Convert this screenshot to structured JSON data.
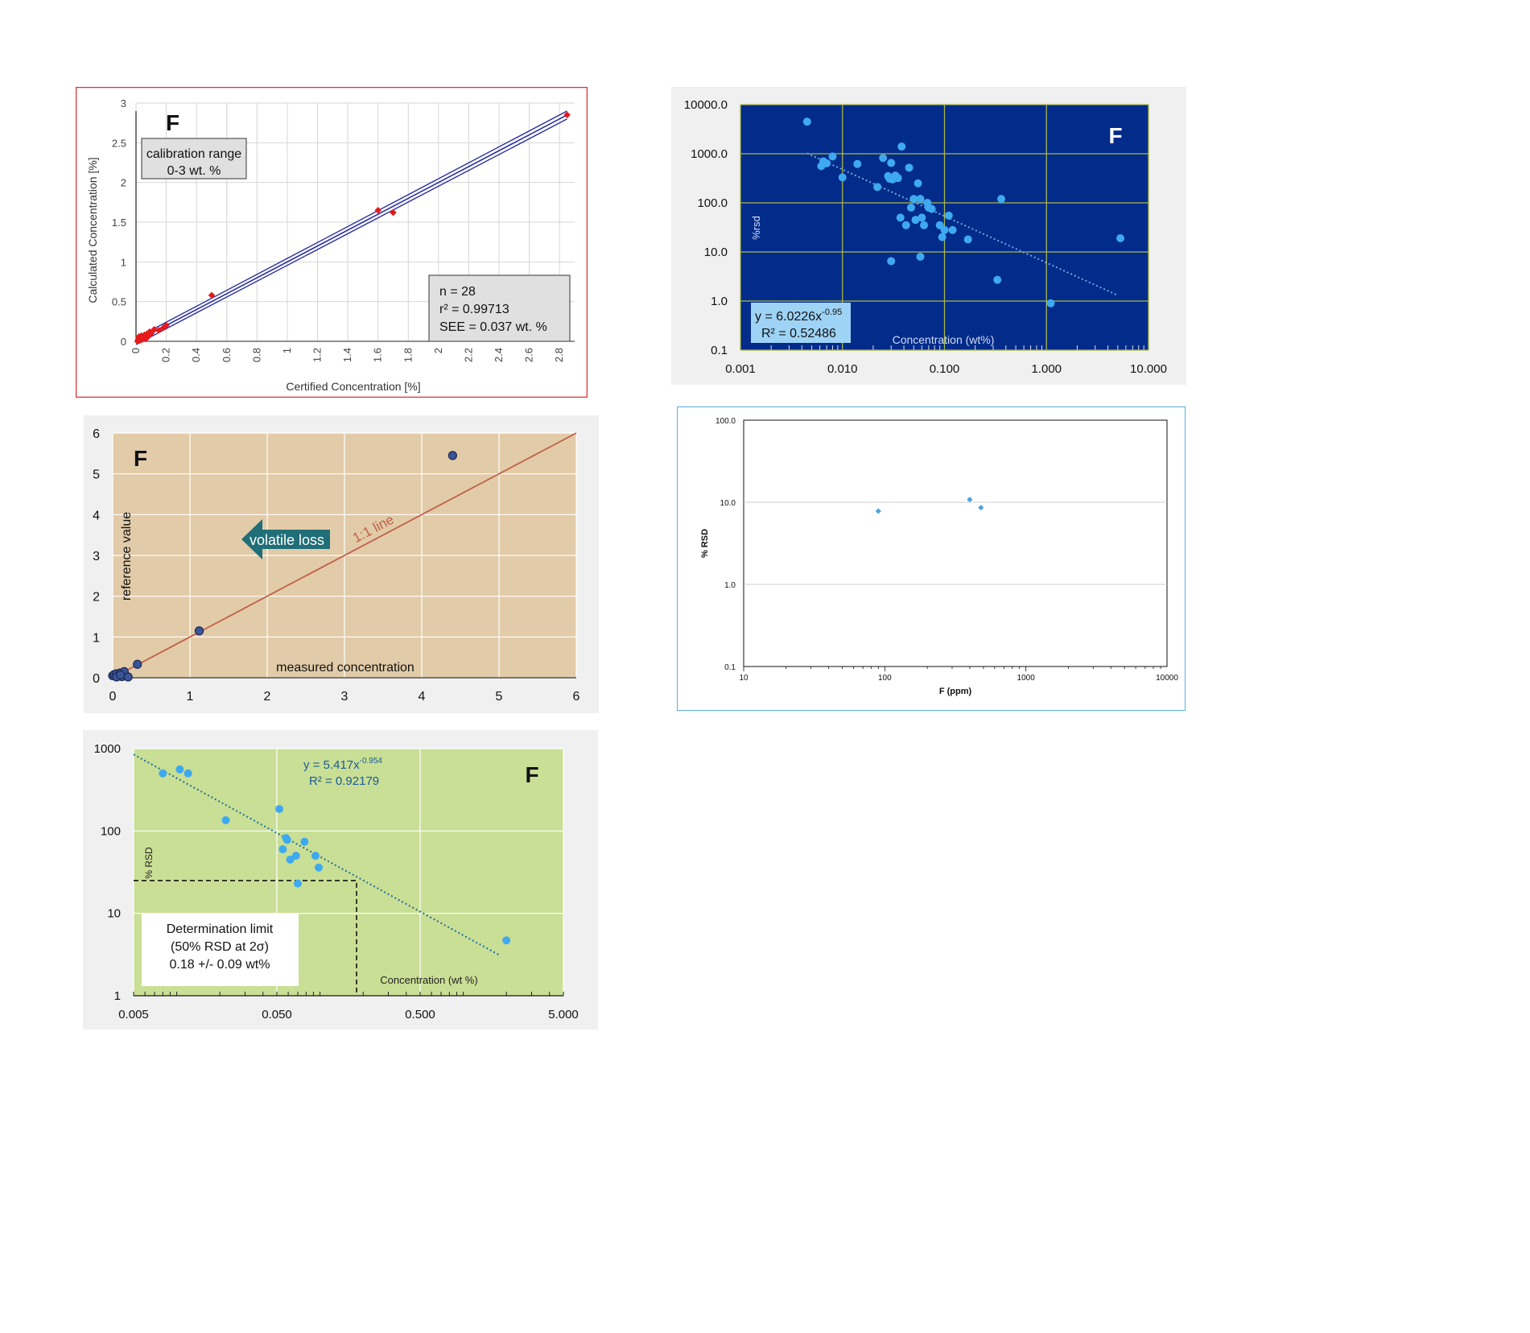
{
  "chart_data": [
    {
      "type": "scatter",
      "panel_letter": "F",
      "xlabel": "Certified Concentration [%]",
      "ylabel": "Calculated Concentration [%]",
      "xlim": [
        0,
        2.9
      ],
      "ylim": [
        0,
        3
      ],
      "x_ticks": [
        "0",
        "0.2",
        "0.4",
        "0.6",
        "0.8",
        "1",
        "1.2",
        "1.4",
        "1.6",
        "1.8",
        "2",
        "2.2",
        "2.4",
        "2.6",
        "2.8"
      ],
      "y_ticks": [
        "0",
        "0.5",
        "1",
        "1.5",
        "2",
        "2.5",
        "3"
      ],
      "grid": true,
      "colors": {
        "points": "#e41a1c",
        "lines": "#2b2fa0",
        "frame": "#e03030"
      },
      "annotations": {
        "calibration": [
          "calibration range",
          "0-3 wt. %"
        ],
        "stats": [
          "n = 28",
          "r² = 0.99713",
          "SEE = 0.037 wt. %"
        ]
      },
      "series": [
        {
          "x": [
            0.01,
            0.015,
            0.02,
            0.02,
            0.025,
            0.03,
            0.03,
            0.035,
            0.04,
            0.045,
            0.05,
            0.055,
            0.06,
            0.065,
            0.07,
            0.075,
            0.08,
            0.085,
            0.09,
            0.1,
            0.12,
            0.15,
            0.18,
            0.2,
            0.5,
            1.6,
            1.7,
            2.85
          ],
          "y": [
            0.0,
            0.02,
            0.04,
            0.06,
            0.01,
            0.03,
            0.05,
            0.07,
            0.02,
            0.05,
            0.04,
            0.08,
            0.06,
            0.03,
            0.09,
            0.05,
            0.1,
            0.07,
            0.12,
            0.1,
            0.15,
            0.14,
            0.17,
            0.2,
            0.58,
            1.65,
            1.62,
            2.85
          ]
        }
      ],
      "fit_lines": [
        {
          "x": [
            0,
            2.85
          ],
          "y": [
            0.04,
            2.9
          ]
        },
        {
          "x": [
            0,
            2.85
          ],
          "y": [
            -0.04,
            2.8
          ]
        }
      ]
    },
    {
      "type": "scatter",
      "panel_letter": "F",
      "xlabel": "Concentration (wt%)",
      "ylabel": "%rsd",
      "x_scale": "log",
      "y_scale": "log",
      "xlim": [
        0.001,
        10
      ],
      "ylim": [
        0.1,
        10000
      ],
      "x_ticks": [
        "0.001",
        "0.010",
        "0.100",
        "1.000",
        "10.000"
      ],
      "y_ticks": [
        "0.1",
        "1.0",
        "10.0",
        "100.0",
        "1000.0",
        "10000.0"
      ],
      "grid": true,
      "colors": {
        "background": "#022b8a",
        "points": "#3fa9f0",
        "grid": "#a8b84a",
        "trend": "#6fa8d8",
        "equation_box": "#9ed3f5"
      },
      "trendline": {
        "equation": "y = 6.0226x",
        "exponent": "-0.95",
        "r2": "R² = 0.52486",
        "x": [
          0.0045,
          4.8
        ]
      },
      "series": [
        {
          "x": [
            0.0045,
            0.0062,
            0.0065,
            0.007,
            0.008,
            0.01,
            0.014,
            0.022,
            0.025,
            0.028,
            0.029,
            0.03,
            0.031,
            0.033,
            0.035,
            0.037,
            0.038,
            0.042,
            0.045,
            0.047,
            0.05,
            0.052,
            0.055,
            0.058,
            0.06,
            0.063,
            0.068,
            0.07,
            0.075,
            0.09,
            0.095,
            0.1,
            0.11,
            0.12,
            0.17,
            0.33,
            0.36,
            1.1,
            5.3,
            0.03,
            0.058
          ],
          "y": [
            4500,
            560,
            700,
            640,
            880,
            330,
            620,
            210,
            820,
            350,
            310,
            650,
            300,
            360,
            320,
            50,
            1400,
            35,
            520,
            80,
            120,
            45,
            250,
            120,
            50,
            35,
            100,
            80,
            75,
            35,
            20,
            28,
            55,
            28,
            18,
            2.7,
            120,
            0.9,
            19,
            6.5,
            8
          ]
        }
      ]
    },
    {
      "type": "scatter",
      "panel_letter": "F",
      "xlabel": "measured concentration",
      "ylabel": "reference value",
      "xlim": [
        0,
        6
      ],
      "ylim": [
        0,
        6
      ],
      "x_ticks": [
        "0",
        "1",
        "2",
        "3",
        "4",
        "5",
        "6"
      ],
      "y_ticks": [
        "0",
        "1",
        "2",
        "3",
        "4",
        "5",
        "6"
      ],
      "grid": true,
      "colors": {
        "background": "#e2cba8",
        "points": "#3b5599",
        "line": "#c0604a",
        "arrow": "#1f6e78"
      },
      "annotations": {
        "line_label": "1:1 line",
        "arrow_label": "volatile loss"
      },
      "one_to_one": {
        "x": [
          0,
          6
        ],
        "y": [
          0,
          6
        ]
      },
      "series": [
        {
          "x": [
            0.0,
            0.02,
            0.05,
            0.08,
            0.1,
            0.12,
            0.15,
            0.2,
            0.05,
            0.1,
            0.32,
            1.12,
            4.4
          ],
          "y": [
            0.05,
            0.08,
            0.1,
            0.05,
            0.12,
            0.03,
            0.15,
            0.02,
            0.02,
            0.07,
            0.33,
            1.15,
            5.45
          ]
        }
      ]
    },
    {
      "type": "scatter",
      "xlabel": "F (ppm)",
      "ylabel": "% RSD",
      "x_scale": "log",
      "y_scale": "log",
      "xlim": [
        10,
        10000
      ],
      "ylim": [
        0.1,
        100
      ],
      "x_ticks": [
        "10",
        "100",
        "1000",
        "10000"
      ],
      "y_ticks": [
        "0.1",
        "1.0",
        "10.0",
        "100.0"
      ],
      "grid": true,
      "colors": {
        "points": "#4aa3df",
        "frame": "#5aaee0"
      },
      "series": [
        {
          "x": [
            90,
            400,
            480
          ],
          "y": [
            7.8,
            10.8,
            8.6
          ]
        }
      ]
    },
    {
      "type": "scatter",
      "panel_letter": "F",
      "xlabel": "Concentration (wt %)",
      "ylabel": "% RSD",
      "x_scale": "log",
      "y_scale": "log",
      "xlim": [
        0.005,
        5
      ],
      "ylim": [
        1,
        1000
      ],
      "x_ticks": [
        "0.005",
        "0.050",
        "0.500",
        "5.000"
      ],
      "y_ticks": [
        "1",
        "10",
        "100",
        "1000"
      ],
      "grid": true,
      "colors": {
        "background": "#c9df95",
        "points": "#3fa9f0",
        "trend": "#1f6e9a",
        "equation": "#1a5a9a"
      },
      "trendline": {
        "equation": "y = 5.417x",
        "exponent": "-0.954",
        "r2": "R² = 0.92179",
        "x": [
          0.005,
          1.8
        ]
      },
      "annotations": {
        "box": [
          "Determination limit",
          "(50% RSD at 2σ)",
          "0.18 +/- 0.09 wt%"
        ]
      },
      "determination_limit": {
        "x": 0.18,
        "y": 25
      },
      "series": [
        {
          "x": [
            0.008,
            0.0105,
            0.012,
            0.022,
            0.052,
            0.058,
            0.059,
            0.055,
            0.062,
            0.068,
            0.078,
            0.093,
            0.098,
            2.0,
            0.07
          ],
          "y": [
            500,
            560,
            500,
            135,
            185,
            82,
            78,
            60,
            45,
            50,
            74,
            50,
            36,
            4.7,
            23
          ]
        }
      ]
    }
  ]
}
